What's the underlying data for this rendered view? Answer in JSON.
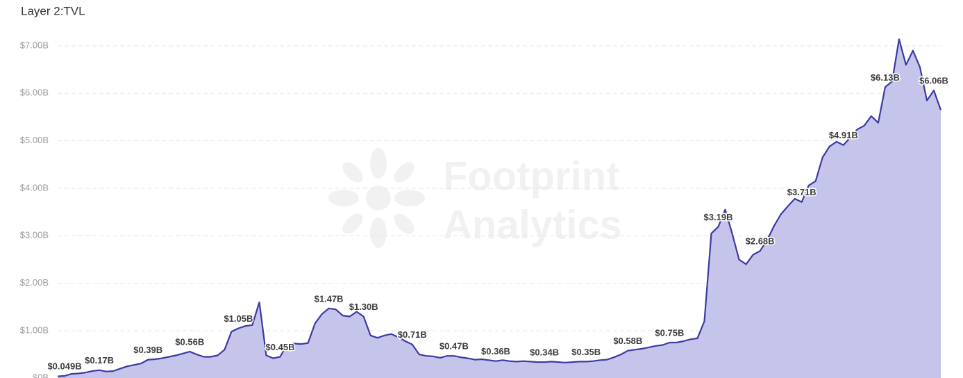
{
  "chart_data": {
    "type": "area",
    "title": "Layer 2:TVL",
    "watermark": [
      "Footprint",
      "Analytics"
    ],
    "values": [
      0.04,
      0.049,
      0.09,
      0.1,
      0.12,
      0.15,
      0.17,
      0.14,
      0.15,
      0.2,
      0.25,
      0.28,
      0.31,
      0.39,
      0.4,
      0.42,
      0.45,
      0.48,
      0.52,
      0.56,
      0.5,
      0.45,
      0.45,
      0.48,
      0.6,
      0.98,
      1.05,
      1.1,
      1.12,
      1.6,
      0.48,
      0.42,
      0.45,
      0.72,
      0.73,
      0.72,
      0.74,
      1.15,
      1.35,
      1.47,
      1.45,
      1.32,
      1.3,
      1.4,
      1.3,
      0.9,
      0.85,
      0.9,
      0.93,
      0.86,
      0.78,
      0.71,
      0.5,
      0.47,
      0.46,
      0.43,
      0.47,
      0.47,
      0.44,
      0.42,
      0.39,
      0.4,
      0.38,
      0.36,
      0.38,
      0.36,
      0.35,
      0.36,
      0.35,
      0.34,
      0.34,
      0.35,
      0.34,
      0.33,
      0.34,
      0.35,
      0.35,
      0.36,
      0.38,
      0.39,
      0.44,
      0.5,
      0.58,
      0.6,
      0.62,
      0.65,
      0.68,
      0.7,
      0.75,
      0.75,
      0.78,
      0.82,
      0.84,
      1.2,
      3.05,
      3.19,
      3.55,
      3.05,
      2.5,
      2.4,
      2.6,
      2.68,
      2.9,
      3.2,
      3.45,
      3.62,
      3.78,
      3.71,
      4.06,
      4.15,
      4.65,
      4.88,
      4.98,
      4.91,
      5.07,
      5.24,
      5.32,
      5.52,
      5.38,
      6.13,
      6.25,
      7.14,
      6.6,
      6.9,
      6.55,
      5.85,
      6.06,
      5.65
    ],
    "value_labels": [
      null,
      "$0.049B",
      null,
      null,
      null,
      null,
      "$0.17B",
      null,
      null,
      null,
      null,
      null,
      null,
      "$0.39B",
      null,
      null,
      null,
      null,
      null,
      "$0.56B",
      null,
      null,
      null,
      null,
      null,
      null,
      "$1.05B",
      null,
      null,
      null,
      null,
      null,
      "$0.45B",
      null,
      null,
      null,
      null,
      null,
      null,
      "$1.47B",
      null,
      null,
      null,
      null,
      "$1.30B",
      null,
      null,
      null,
      null,
      null,
      null,
      "$0.71B",
      null,
      null,
      null,
      null,
      null,
      "$0.47B",
      null,
      null,
      null,
      null,
      null,
      "$0.36B",
      null,
      null,
      null,
      null,
      null,
      null,
      "$0.34B",
      null,
      null,
      null,
      null,
      null,
      "$0.35B",
      null,
      null,
      null,
      null,
      null,
      "$0.58B",
      null,
      null,
      null,
      null,
      null,
      "$0.75B",
      null,
      null,
      null,
      null,
      null,
      null,
      "$3.19B",
      null,
      null,
      null,
      null,
      null,
      "$2.68B",
      null,
      null,
      null,
      null,
      null,
      "$3.71B",
      null,
      null,
      null,
      null,
      null,
      "$4.91B",
      null,
      null,
      null,
      null,
      null,
      "$6.13B",
      null,
      null,
      null,
      null,
      null,
      null,
      "$6.06B",
      null
    ],
    "color": "#3b3aa3",
    "fill": "#c5c4ea",
    "ylim": [
      0,
      7.5
    ],
    "yticks": [
      {
        "value": 0,
        "label": "$0B"
      },
      {
        "value": 1,
        "label": "$1.00B"
      },
      {
        "value": 2,
        "label": "$2.00B"
      },
      {
        "value": 3,
        "label": "$3.00B"
      },
      {
        "value": 4,
        "label": "$4.00B"
      },
      {
        "value": 5,
        "label": "$5.00B"
      },
      {
        "value": 6,
        "label": "$6.00B"
      },
      {
        "value": 7,
        "label": "$7.00B"
      }
    ],
    "grid": true
  }
}
